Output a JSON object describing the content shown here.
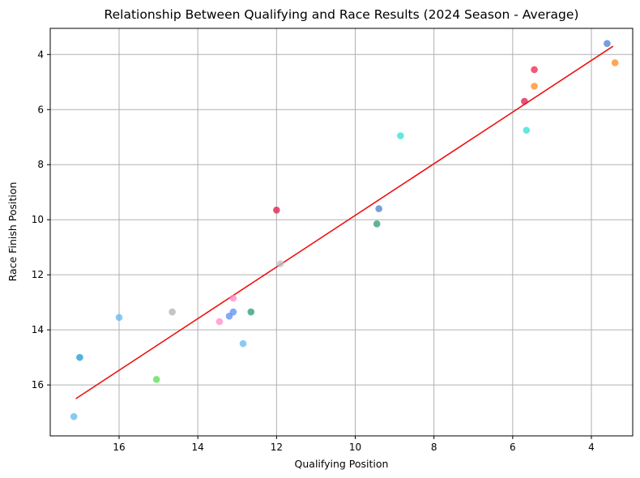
{
  "chart_data": {
    "type": "scatter",
    "title": "Relationship Between Qualifying and Race Results (2024 Season - Average)",
    "xlabel": "Qualifying Position",
    "ylabel": "Race Finish Position",
    "xlim": [
      17.75,
      2.95
    ],
    "ylim": [
      17.85,
      3.05
    ],
    "x_inverted": true,
    "y_inverted": true,
    "grid": true,
    "xticks": [
      16,
      14,
      12,
      10,
      8,
      6,
      4
    ],
    "yticks": [
      4,
      6,
      8,
      10,
      12,
      14,
      16
    ],
    "points": [
      {
        "x": 3.6,
        "y": 3.6,
        "color": "#4a7fd0"
      },
      {
        "x": 3.4,
        "y": 4.3,
        "color": "#ff8a1a"
      },
      {
        "x": 5.45,
        "y": 4.55,
        "color": "#f0204a"
      },
      {
        "x": 5.45,
        "y": 5.15,
        "color": "#ff8a1a"
      },
      {
        "x": 5.7,
        "y": 5.7,
        "color": "#dc1a4a"
      },
      {
        "x": 5.65,
        "y": 6.75,
        "color": "#30e0d0"
      },
      {
        "x": 8.85,
        "y": 6.95,
        "color": "#30e0d0"
      },
      {
        "x": 12.0,
        "y": 9.65,
        "color": "#dc1a4a"
      },
      {
        "x": 9.4,
        "y": 9.6,
        "color": "#4a7fd0"
      },
      {
        "x": 9.45,
        "y": 10.15,
        "color": "#2a9a70"
      },
      {
        "x": 11.9,
        "y": 11.6,
        "color": "#c0c0c0"
      },
      {
        "x": 13.1,
        "y": 12.85,
        "color": "#ff8ac8"
      },
      {
        "x": 14.65,
        "y": 13.35,
        "color": "#b0b0b0"
      },
      {
        "x": 16.0,
        "y": 13.55,
        "color": "#60b8f0"
      },
      {
        "x": 12.65,
        "y": 13.35,
        "color": "#2a9a70"
      },
      {
        "x": 13.1,
        "y": 13.35,
        "color": "#5b8ef0"
      },
      {
        "x": 13.2,
        "y": 13.5,
        "color": "#5b8ef0"
      },
      {
        "x": 13.45,
        "y": 13.7,
        "color": "#ff8ac8"
      },
      {
        "x": 12.85,
        "y": 14.5,
        "color": "#60b8f0"
      },
      {
        "x": 17.0,
        "y": 15.0,
        "color": "#1a9ad0"
      },
      {
        "x": 15.05,
        "y": 15.8,
        "color": "#50e050"
      },
      {
        "x": 17.15,
        "y": 17.15,
        "color": "#60b8f0"
      }
    ],
    "trend_line": {
      "x": [
        17.1,
        3.45
      ],
      "y": [
        16.5,
        3.7
      ],
      "color": "#ee1111"
    }
  }
}
